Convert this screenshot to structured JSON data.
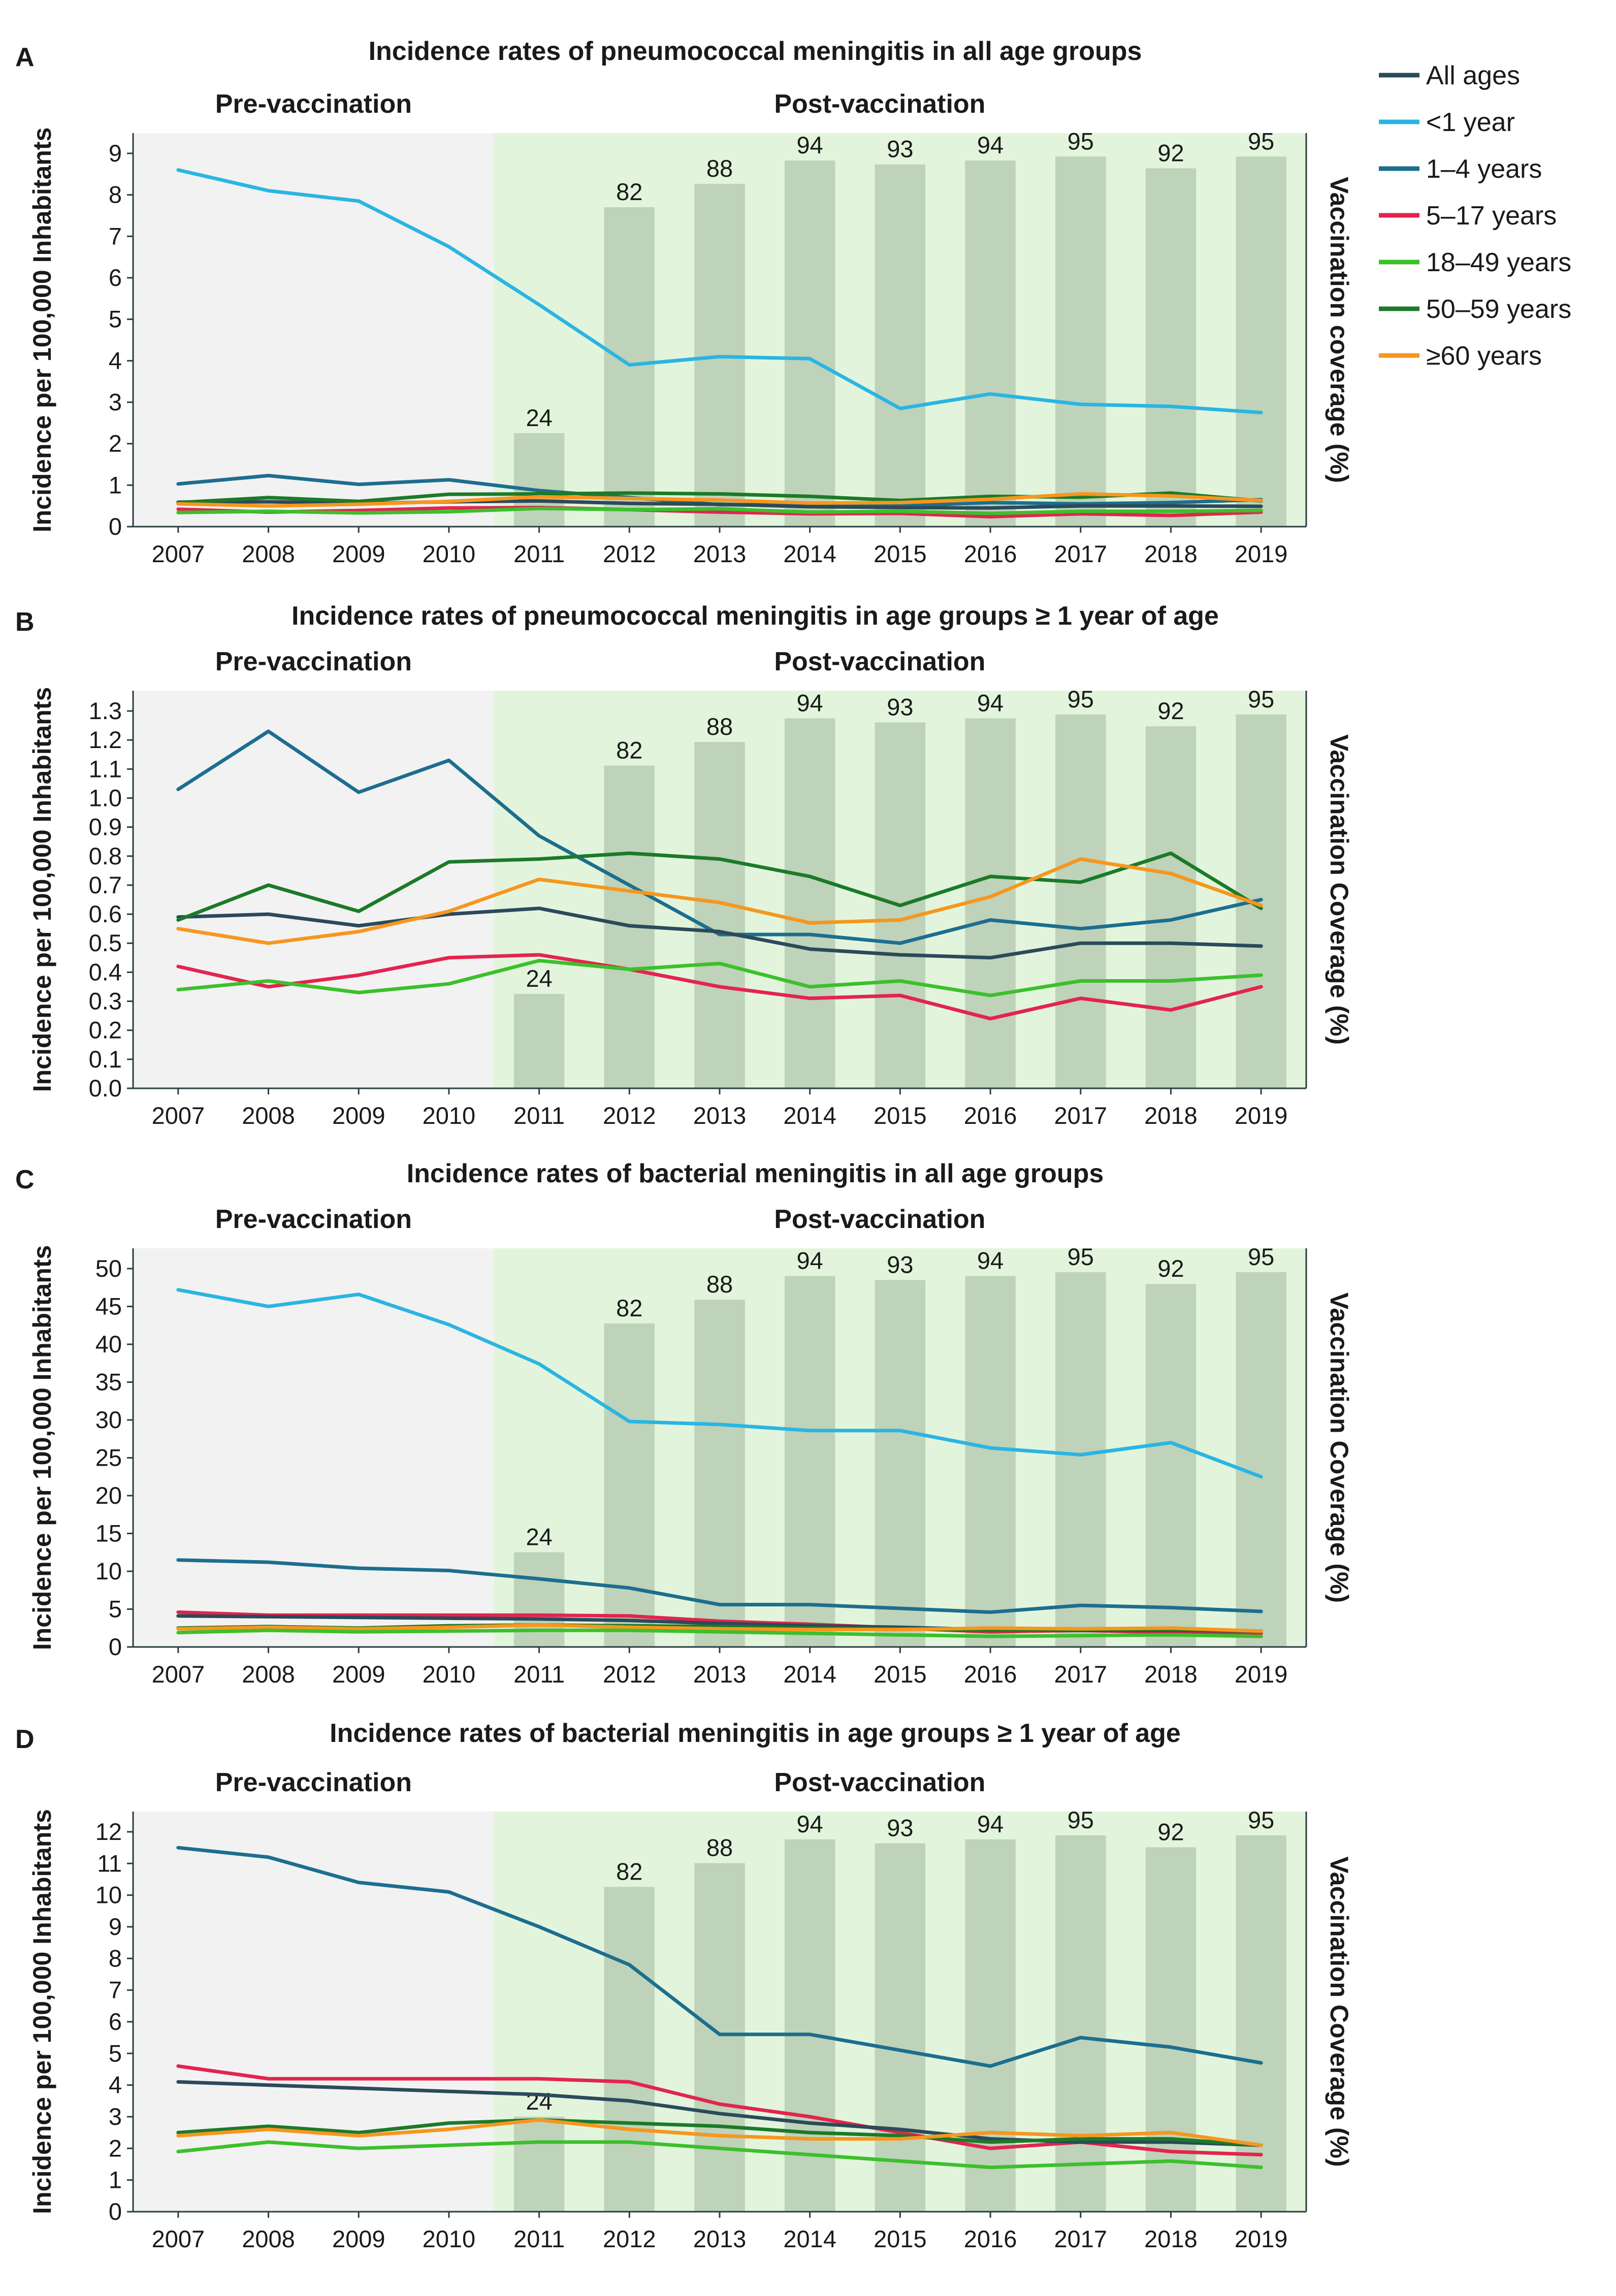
{
  "years": [
    "2007",
    "2008",
    "2009",
    "2010",
    "2011",
    "2012",
    "2013",
    "2014",
    "2015",
    "2016",
    "2017",
    "2018",
    "2019"
  ],
  "pre_label": "Pre-vaccination",
  "post_label": "Post-vaccination",
  "coverage_label_a": "Vaccination coverage (%)",
  "coverage_label_b": "Vaccination Coverage (%)",
  "colors": {
    "pre_bg": "#f2f2f2",
    "post_bg": "#e2f5dc",
    "bar": "#bed3b9",
    "frame": "#2b3d40"
  },
  "legend": [
    {
      "label": "All ages",
      "color": "#2b4a5a"
    },
    {
      "label": "<1 year",
      "color": "#2ab5e2"
    },
    {
      "label": "1–4 years",
      "color": "#1d6e8e"
    },
    {
      "label": "5–17 years",
      "color": "#e3244e"
    },
    {
      "label": "18–49 years",
      "color": "#3cc02c"
    },
    {
      "label": "50–59 years",
      "color": "#1c7a28"
    },
    {
      "label": "≥60 years",
      "color": "#f7961e"
    }
  ],
  "chart_data": [
    {
      "panel": "A",
      "type": "line",
      "title": "Incidence rates of pneumococcal meningitis in all age groups",
      "xlabel": "",
      "ylabel": "Incidence per 100,000 Inhabitants",
      "y2label": "Vaccination coverage (%)",
      "ylim": [
        0,
        9
      ],
      "yticks": [
        "0",
        "1",
        "2",
        "3",
        "4",
        "5",
        "6",
        "7",
        "8",
        "9"
      ],
      "categories": [
        "2007",
        "2008",
        "2009",
        "2010",
        "2011",
        "2012",
        "2013",
        "2014",
        "2015",
        "2016",
        "2017",
        "2018",
        "2019"
      ],
      "coverage": [
        null,
        null,
        null,
        null,
        24,
        82,
        88,
        94,
        93,
        94,
        95,
        92,
        95
      ],
      "coverage_labels": [
        "",
        "",
        "",
        "",
        "24",
        "82",
        "88",
        "94",
        "93",
        "94",
        "95",
        "92",
        "95"
      ],
      "series": [
        {
          "name": "<1 year",
          "values": [
            8.6,
            8.1,
            7.85,
            6.75,
            5.35,
            3.9,
            4.1,
            4.05,
            2.85,
            3.2,
            2.95,
            2.9,
            2.75
          ]
        },
        {
          "name": "1–4 years",
          "values": [
            1.03,
            1.23,
            1.02,
            1.13,
            0.87,
            0.7,
            0.53,
            0.53,
            0.5,
            0.58,
            0.55,
            0.58,
            0.65
          ]
        },
        {
          "name": "All ages",
          "values": [
            0.59,
            0.6,
            0.56,
            0.6,
            0.62,
            0.56,
            0.54,
            0.48,
            0.46,
            0.45,
            0.5,
            0.5,
            0.49
          ]
        },
        {
          "name": "5–17 years",
          "values": [
            0.42,
            0.35,
            0.39,
            0.45,
            0.46,
            0.41,
            0.35,
            0.31,
            0.32,
            0.24,
            0.31,
            0.27,
            0.35
          ]
        },
        {
          "name": "18–49 years",
          "values": [
            0.34,
            0.37,
            0.33,
            0.36,
            0.44,
            0.41,
            0.43,
            0.35,
            0.37,
            0.32,
            0.37,
            0.37,
            0.39
          ]
        },
        {
          "name": "50–59 years",
          "values": [
            0.58,
            0.7,
            0.61,
            0.78,
            0.79,
            0.81,
            0.79,
            0.73,
            0.63,
            0.73,
            0.71,
            0.81,
            0.62
          ]
        },
        {
          "name": "≥60 years",
          "values": [
            0.55,
            0.5,
            0.54,
            0.61,
            0.72,
            0.68,
            0.64,
            0.57,
            0.58,
            0.66,
            0.79,
            0.74,
            0.63
          ]
        }
      ]
    },
    {
      "panel": "B",
      "type": "line",
      "title": "Incidence rates of pneumococcal meningitis in age groups ≥ 1 year of age",
      "xlabel": "",
      "ylabel": "Incidence per 100,000 Inhabitants",
      "y2label": "Vaccination Coverage (%)",
      "ylim": [
        0,
        1.3
      ],
      "yticks": [
        "0.0",
        "0.1",
        "0.2",
        "0.3",
        "0.4",
        "0.5",
        "0.6",
        "0.7",
        "0.8",
        "0.9",
        "1.0",
        "1.1",
        "1.2",
        "1.3"
      ],
      "categories": [
        "2007",
        "2008",
        "2009",
        "2010",
        "2011",
        "2012",
        "2013",
        "2014",
        "2015",
        "2016",
        "2017",
        "2018",
        "2019"
      ],
      "coverage": [
        null,
        null,
        null,
        null,
        24,
        82,
        88,
        94,
        93,
        94,
        95,
        92,
        95
      ],
      "coverage_labels": [
        "",
        "",
        "",
        "",
        "24",
        "82",
        "88",
        "94",
        "93",
        "94",
        "95",
        "92",
        "95"
      ],
      "series": [
        {
          "name": "1–4 years",
          "values": [
            1.03,
            1.23,
            1.02,
            1.13,
            0.87,
            0.7,
            0.53,
            0.53,
            0.5,
            0.58,
            0.55,
            0.58,
            0.65
          ]
        },
        {
          "name": "All ages",
          "values": [
            0.59,
            0.6,
            0.56,
            0.6,
            0.62,
            0.56,
            0.54,
            0.48,
            0.46,
            0.45,
            0.5,
            0.5,
            0.49
          ]
        },
        {
          "name": "5–17 years",
          "values": [
            0.42,
            0.35,
            0.39,
            0.45,
            0.46,
            0.41,
            0.35,
            0.31,
            0.32,
            0.24,
            0.31,
            0.27,
            0.35
          ]
        },
        {
          "name": "18–49 years",
          "values": [
            0.34,
            0.37,
            0.33,
            0.36,
            0.44,
            0.41,
            0.43,
            0.35,
            0.37,
            0.32,
            0.37,
            0.37,
            0.39
          ]
        },
        {
          "name": "50–59 years",
          "values": [
            0.58,
            0.7,
            0.61,
            0.78,
            0.79,
            0.81,
            0.79,
            0.73,
            0.63,
            0.73,
            0.71,
            0.81,
            0.62
          ]
        },
        {
          "name": "≥60 years",
          "values": [
            0.55,
            0.5,
            0.54,
            0.61,
            0.72,
            0.68,
            0.64,
            0.57,
            0.58,
            0.66,
            0.79,
            0.74,
            0.63
          ]
        }
      ]
    },
    {
      "panel": "C",
      "type": "line",
      "title": "Incidence rates of bacterial meningitis in all age groups",
      "xlabel": "",
      "ylabel": "Incidence per 100,000 Inhabitants",
      "y2label": "Vaccination Coverage (%)",
      "ylim": [
        0,
        50
      ],
      "yticks": [
        "0",
        "5",
        "10",
        "15",
        "20",
        "25",
        "30",
        "35",
        "40",
        "45",
        "50"
      ],
      "categories": [
        "2007",
        "2008",
        "2009",
        "2010",
        "2011",
        "2012",
        "2013",
        "2014",
        "2015",
        "2016",
        "2017",
        "2018",
        "2019"
      ],
      "coverage": [
        null,
        null,
        null,
        null,
        24,
        82,
        88,
        94,
        93,
        94,
        95,
        92,
        95
      ],
      "coverage_labels": [
        "",
        "",
        "",
        "",
        "24",
        "82",
        "88",
        "94",
        "93",
        "94",
        "95",
        "92",
        "95"
      ],
      "series": [
        {
          "name": "<1 year",
          "values": [
            47.2,
            45.0,
            46.6,
            42.6,
            37.4,
            29.8,
            29.4,
            28.6,
            28.6,
            26.3,
            25.4,
            27.0,
            22.5
          ]
        },
        {
          "name": "1–4 years",
          "values": [
            11.5,
            11.2,
            10.4,
            10.1,
            9.0,
            7.8,
            5.6,
            5.6,
            5.1,
            4.6,
            5.5,
            5.2,
            4.7
          ]
        },
        {
          "name": "5–17 years",
          "values": [
            4.6,
            4.2,
            4.2,
            4.2,
            4.2,
            4.1,
            3.4,
            3.0,
            2.5,
            2.0,
            2.2,
            1.9,
            1.8
          ]
        },
        {
          "name": "All ages",
          "values": [
            4.1,
            4.0,
            3.9,
            3.8,
            3.7,
            3.5,
            3.1,
            2.8,
            2.6,
            2.3,
            2.2,
            2.2,
            2.1
          ]
        },
        {
          "name": "50–59 years",
          "values": [
            2.5,
            2.7,
            2.5,
            2.8,
            2.9,
            2.8,
            2.7,
            2.5,
            2.4,
            2.2,
            2.3,
            2.3,
            2.1
          ]
        },
        {
          "name": "≥60 years",
          "values": [
            2.4,
            2.6,
            2.4,
            2.6,
            2.9,
            2.6,
            2.4,
            2.3,
            2.3,
            2.5,
            2.4,
            2.5,
            2.1
          ]
        },
        {
          "name": "18–49 years",
          "values": [
            1.9,
            2.2,
            2.0,
            2.1,
            2.2,
            2.2,
            2.0,
            1.8,
            1.6,
            1.4,
            1.5,
            1.6,
            1.4
          ]
        }
      ]
    },
    {
      "panel": "D",
      "type": "line",
      "title": "Incidence rates of bacterial meningitis in age groups ≥ 1 year of age",
      "xlabel": "",
      "ylabel": "Incidence per 100,000 Inhabitants",
      "y2label": "Vaccination Coverage (%)",
      "ylim": [
        0,
        12
      ],
      "yticks": [
        "0",
        "1",
        "2",
        "3",
        "4",
        "5",
        "6",
        "7",
        "8",
        "9",
        "10",
        "11",
        "12"
      ],
      "categories": [
        "2007",
        "2008",
        "2009",
        "2010",
        "2011",
        "2012",
        "2013",
        "2014",
        "2015",
        "2016",
        "2017",
        "2018",
        "2019"
      ],
      "coverage": [
        null,
        null,
        null,
        null,
        24,
        82,
        88,
        94,
        93,
        94,
        95,
        92,
        95
      ],
      "coverage_labels": [
        "",
        "",
        "",
        "",
        "24",
        "82",
        "88",
        "94",
        "93",
        "94",
        "95",
        "92",
        "95"
      ],
      "series": [
        {
          "name": "1–4 years",
          "values": [
            11.5,
            11.2,
            10.4,
            10.1,
            9.0,
            7.8,
            5.6,
            5.6,
            5.1,
            4.6,
            5.5,
            5.2,
            4.7
          ]
        },
        {
          "name": "5–17 years",
          "values": [
            4.6,
            4.2,
            4.2,
            4.2,
            4.2,
            4.1,
            3.4,
            3.0,
            2.5,
            2.0,
            2.2,
            1.9,
            1.8
          ]
        },
        {
          "name": "All ages",
          "values": [
            4.1,
            4.0,
            3.9,
            3.8,
            3.7,
            3.5,
            3.1,
            2.8,
            2.6,
            2.3,
            2.2,
            2.2,
            2.1
          ]
        },
        {
          "name": "50–59 years",
          "values": [
            2.5,
            2.7,
            2.5,
            2.8,
            2.9,
            2.8,
            2.7,
            2.5,
            2.4,
            2.2,
            2.3,
            2.3,
            2.1
          ]
        },
        {
          "name": "≥60 years",
          "values": [
            2.4,
            2.6,
            2.4,
            2.6,
            2.9,
            2.6,
            2.4,
            2.3,
            2.3,
            2.5,
            2.4,
            2.5,
            2.1
          ]
        },
        {
          "name": "18–49 years",
          "values": [
            1.9,
            2.2,
            2.0,
            2.1,
            2.2,
            2.2,
            2.0,
            1.8,
            1.6,
            1.4,
            1.5,
            1.6,
            1.4
          ]
        }
      ]
    }
  ]
}
